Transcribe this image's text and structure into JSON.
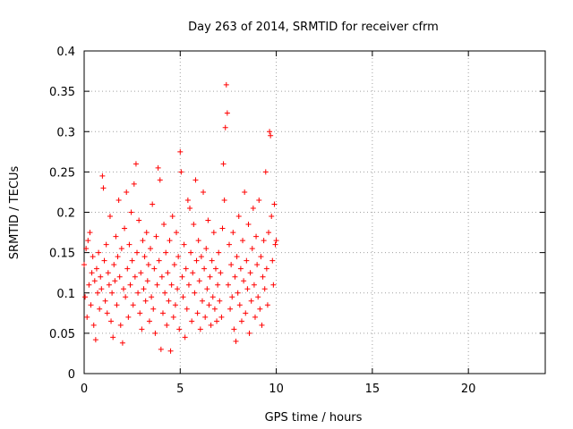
{
  "chart_data": {
    "type": "scatter",
    "title": "Day 263 of 2014, SRMTID for receiver cfrm",
    "xlabel": "GPS time / hours",
    "ylabel": "SRMTID / TECUs",
    "xlim": [
      0,
      24
    ],
    "ylim": [
      0,
      0.4
    ],
    "x_ticks": [
      0,
      5,
      10,
      15,
      20
    ],
    "x_tick_labels": [
      "0",
      "5",
      "10",
      "15",
      "20"
    ],
    "y_ticks": [
      0,
      0.05,
      0.1,
      0.15,
      0.2,
      0.25,
      0.3,
      0.35,
      0.4
    ],
    "y_tick_labels": [
      "0",
      "0.05",
      "0.1",
      "0.15",
      "0.2",
      "0.25",
      "0.3",
      "0.35",
      "0.4"
    ],
    "grid": true,
    "marker": "+",
    "marker_color": "#ff0000",
    "series": [
      {
        "name": "SRMTID",
        "points": [
          [
            0.0,
            0.135
          ],
          [
            0.05,
            0.095
          ],
          [
            0.1,
            0.155
          ],
          [
            0.15,
            0.07
          ],
          [
            0.2,
            0.165
          ],
          [
            0.25,
            0.11
          ],
          [
            0.3,
            0.175
          ],
          [
            0.35,
            0.085
          ],
          [
            0.4,
            0.125
          ],
          [
            0.45,
            0.145
          ],
          [
            0.5,
            0.06
          ],
          [
            0.55,
            0.115
          ],
          [
            0.6,
            0.042
          ],
          [
            0.65,
            0.13
          ],
          [
            0.7,
            0.1
          ],
          [
            0.75,
            0.15
          ],
          [
            0.8,
            0.08
          ],
          [
            0.85,
            0.12
          ],
          [
            0.9,
            0.105
          ],
          [
            0.95,
            0.245
          ],
          [
            1.0,
            0.23
          ],
          [
            1.05,
            0.14
          ],
          [
            1.1,
            0.09
          ],
          [
            1.15,
            0.16
          ],
          [
            1.2,
            0.075
          ],
          [
            1.25,
            0.125
          ],
          [
            1.3,
            0.11
          ],
          [
            1.35,
            0.195
          ],
          [
            1.4,
            0.065
          ],
          [
            1.45,
            0.1
          ],
          [
            1.5,
            0.045
          ],
          [
            1.55,
            0.135
          ],
          [
            1.6,
            0.115
          ],
          [
            1.65,
            0.17
          ],
          [
            1.7,
            0.085
          ],
          [
            1.75,
            0.145
          ],
          [
            1.8,
            0.215
          ],
          [
            1.85,
            0.12
          ],
          [
            1.9,
            0.06
          ],
          [
            1.95,
            0.155
          ],
          [
            2.0,
            0.038
          ],
          [
            2.05,
            0.105
          ],
          [
            2.1,
            0.18
          ],
          [
            2.15,
            0.095
          ],
          [
            2.2,
            0.225
          ],
          [
            2.25,
            0.13
          ],
          [
            2.3,
            0.07
          ],
          [
            2.35,
            0.16
          ],
          [
            2.4,
            0.11
          ],
          [
            2.45,
            0.2
          ],
          [
            2.5,
            0.14
          ],
          [
            2.55,
            0.085
          ],
          [
            2.6,
            0.235
          ],
          [
            2.65,
            0.12
          ],
          [
            2.7,
            0.26
          ],
          [
            2.75,
            0.15
          ],
          [
            2.8,
            0.1
          ],
          [
            2.85,
            0.19
          ],
          [
            2.9,
            0.075
          ],
          [
            2.95,
            0.125
          ],
          [
            3.0,
            0.055
          ],
          [
            3.05,
            0.165
          ],
          [
            3.1,
            0.105
          ],
          [
            3.15,
            0.145
          ],
          [
            3.2,
            0.09
          ],
          [
            3.25,
            0.175
          ],
          [
            3.3,
            0.115
          ],
          [
            3.35,
            0.135
          ],
          [
            3.4,
            0.065
          ],
          [
            3.45,
            0.155
          ],
          [
            3.5,
            0.095
          ],
          [
            3.55,
            0.21
          ],
          [
            3.6,
            0.08
          ],
          [
            3.65,
            0.13
          ],
          [
            3.7,
            0.05
          ],
          [
            3.75,
            0.17
          ],
          [
            3.8,
            0.11
          ],
          [
            3.85,
            0.255
          ],
          [
            3.9,
            0.14
          ],
          [
            3.95,
            0.24
          ],
          [
            4.0,
            0.03
          ],
          [
            4.05,
            0.12
          ],
          [
            4.1,
            0.075
          ],
          [
            4.15,
            0.185
          ],
          [
            4.2,
            0.1
          ],
          [
            4.25,
            0.15
          ],
          [
            4.3,
            0.06
          ],
          [
            4.35,
            0.125
          ],
          [
            4.4,
            0.09
          ],
          [
            4.45,
            0.165
          ],
          [
            4.5,
            0.028
          ],
          [
            4.55,
            0.11
          ],
          [
            4.6,
            0.195
          ],
          [
            4.65,
            0.07
          ],
          [
            4.7,
            0.135
          ],
          [
            4.75,
            0.085
          ],
          [
            4.8,
            0.175
          ],
          [
            4.85,
            0.105
          ],
          [
            4.9,
            0.145
          ],
          [
            4.95,
            0.055
          ],
          [
            5.0,
            0.275
          ],
          [
            5.05,
            0.25
          ],
          [
            5.1,
            0.12
          ],
          [
            5.15,
            0.095
          ],
          [
            5.2,
            0.16
          ],
          [
            5.25,
            0.045
          ],
          [
            5.3,
            0.13
          ],
          [
            5.35,
            0.08
          ],
          [
            5.4,
            0.215
          ],
          [
            5.45,
            0.11
          ],
          [
            5.5,
            0.205
          ],
          [
            5.55,
            0.15
          ],
          [
            5.6,
            0.065
          ],
          [
            5.65,
            0.125
          ],
          [
            5.7,
            0.185
          ],
          [
            5.75,
            0.1
          ],
          [
            5.8,
            0.24
          ],
          [
            5.85,
            0.14
          ],
          [
            5.9,
            0.075
          ],
          [
            5.95,
            0.165
          ],
          [
            6.0,
            0.115
          ],
          [
            6.05,
            0.055
          ],
          [
            6.1,
            0.145
          ],
          [
            6.15,
            0.09
          ],
          [
            6.2,
            0.225
          ],
          [
            6.25,
            0.13
          ],
          [
            6.3,
            0.07
          ],
          [
            6.35,
            0.155
          ],
          [
            6.4,
            0.105
          ],
          [
            6.45,
            0.19
          ],
          [
            6.5,
            0.085
          ],
          [
            6.55,
            0.12
          ],
          [
            6.6,
            0.06
          ],
          [
            6.65,
            0.14
          ],
          [
            6.7,
            0.095
          ],
          [
            6.75,
            0.175
          ],
          [
            6.8,
            0.08
          ],
          [
            6.85,
            0.13
          ],
          [
            6.9,
            0.065
          ],
          [
            6.95,
            0.11
          ],
          [
            7.0,
            0.15
          ],
          [
            7.05,
            0.09
          ],
          [
            7.1,
            0.125
          ],
          [
            7.15,
            0.07
          ],
          [
            7.2,
            0.18
          ],
          [
            7.25,
            0.26
          ],
          [
            7.3,
            0.215
          ],
          [
            7.35,
            0.305
          ],
          [
            7.4,
            0.358
          ],
          [
            7.45,
            0.323
          ],
          [
            7.5,
            0.11
          ],
          [
            7.55,
            0.16
          ],
          [
            7.6,
            0.08
          ],
          [
            7.65,
            0.135
          ],
          [
            7.7,
            0.095
          ],
          [
            7.75,
            0.175
          ],
          [
            7.8,
            0.055
          ],
          [
            7.85,
            0.12
          ],
          [
            7.9,
            0.04
          ],
          [
            7.95,
            0.145
          ],
          [
            8.0,
            0.1
          ],
          [
            8.05,
            0.195
          ],
          [
            8.1,
            0.085
          ],
          [
            8.15,
            0.13
          ],
          [
            8.2,
            0.065
          ],
          [
            8.25,
            0.165
          ],
          [
            8.3,
            0.115
          ],
          [
            8.35,
            0.225
          ],
          [
            8.4,
            0.075
          ],
          [
            8.45,
            0.14
          ],
          [
            8.5,
            0.105
          ],
          [
            8.55,
            0.185
          ],
          [
            8.6,
            0.05
          ],
          [
            8.65,
            0.125
          ],
          [
            8.7,
            0.09
          ],
          [
            8.75,
            0.155
          ],
          [
            8.8,
            0.205
          ],
          [
            8.85,
            0.11
          ],
          [
            8.9,
            0.07
          ],
          [
            8.95,
            0.17
          ],
          [
            9.0,
            0.135
          ],
          [
            9.05,
            0.095
          ],
          [
            9.1,
            0.215
          ],
          [
            9.15,
            0.08
          ],
          [
            9.2,
            0.145
          ],
          [
            9.25,
            0.06
          ],
          [
            9.3,
            0.12
          ],
          [
            9.35,
            0.165
          ],
          [
            9.4,
            0.105
          ],
          [
            9.45,
            0.25
          ],
          [
            9.5,
            0.13
          ],
          [
            9.55,
            0.085
          ],
          [
            9.6,
            0.175
          ],
          [
            9.65,
            0.3
          ],
          [
            9.7,
            0.295
          ],
          [
            9.75,
            0.195
          ],
          [
            9.8,
            0.14
          ],
          [
            9.85,
            0.11
          ],
          [
            9.9,
            0.21
          ],
          [
            9.95,
            0.16
          ],
          [
            10.0,
            0.165
          ]
        ]
      }
    ]
  }
}
